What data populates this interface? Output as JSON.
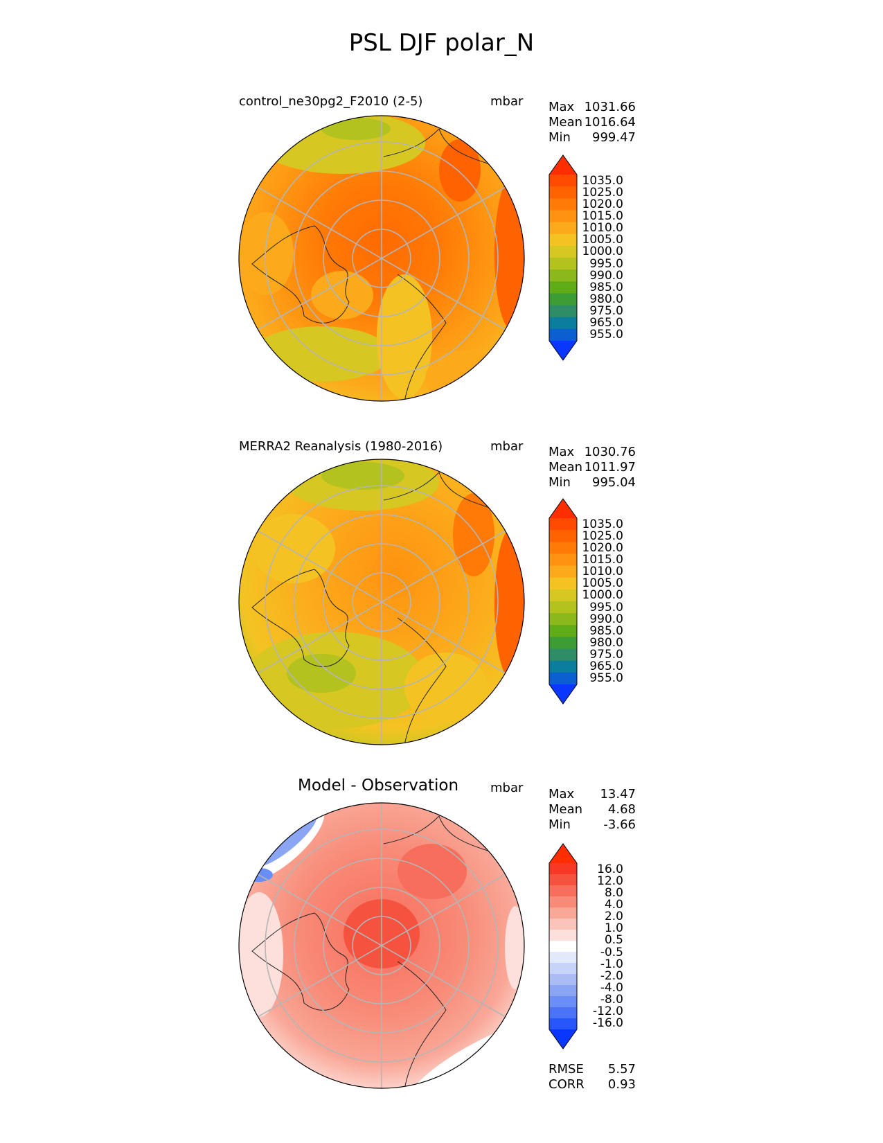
{
  "figure": {
    "title": "PSL DJF polar_N"
  },
  "colors": {
    "abs_scale": [
      "#0a37ff",
      "#0b5fd1",
      "#0b7d9d",
      "#2e8c66",
      "#3d9c34",
      "#60ab18",
      "#8bb81b",
      "#b3c21e",
      "#d6c722",
      "#f4c323",
      "#fcaa1b",
      "#ff9210",
      "#ff7a06",
      "#ff6200",
      "#ff4a00",
      "#ff2e00"
    ],
    "diff_scale": [
      "#0a37ff",
      "#2756fb",
      "#4a73f8",
      "#6a8df6",
      "#8ba5f5",
      "#aabcf6",
      "#c7d3f8",
      "#e3e9fb",
      "#ffffff",
      "#fde0db",
      "#fbc4ba",
      "#f9a797",
      "#f88b78",
      "#f76e5c",
      "#f65240",
      "#f63825",
      "#ff2e00"
    ]
  },
  "panels": [
    {
      "name": "model",
      "label": "control_ne30pg2_F2010 (2-5)",
      "units": "mbar",
      "stats": [
        {
          "label": "Max",
          "value": "1031.66"
        },
        {
          "label": "Mean",
          "value": "1016.64"
        },
        {
          "label": "Min",
          "value": "999.47"
        }
      ],
      "colorbar_ticks": [
        "1035.0",
        "1025.0",
        "1020.0",
        "1015.0",
        "1010.0",
        "1005.0",
        "1000.0",
        "995.0",
        "990.0",
        "985.0",
        "980.0",
        "975.0",
        "965.0",
        "955.0"
      ]
    },
    {
      "name": "obs",
      "label": "MERRA2 Reanalysis (1980-2016)",
      "units": "mbar",
      "stats": [
        {
          "label": "Max",
          "value": "1030.76"
        },
        {
          "label": "Mean",
          "value": "1011.97"
        },
        {
          "label": "Min",
          "value": "995.04"
        }
      ],
      "colorbar_ticks": [
        "1035.0",
        "1025.0",
        "1020.0",
        "1015.0",
        "1010.0",
        "1005.0",
        "1000.0",
        "995.0",
        "990.0",
        "985.0",
        "980.0",
        "975.0",
        "965.0",
        "955.0"
      ]
    },
    {
      "name": "diff",
      "label": "Model - Observation",
      "units": "mbar",
      "stats": [
        {
          "label": "Max",
          "value": "13.47"
        },
        {
          "label": "Mean",
          "value": "4.68"
        },
        {
          "label": "Min",
          "value": "-3.66"
        }
      ],
      "colorbar_ticks": [
        "16.0",
        "12.0",
        "8.0",
        "4.0",
        "2.0",
        "1.0",
        "0.5",
        "-0.5",
        "-1.0",
        "-2.0",
        "-4.0",
        "-8.0",
        "-12.0",
        "-16.0"
      ],
      "extra_stats": [
        {
          "label": "RMSE",
          "value": "5.57"
        },
        {
          "label": "CORR",
          "value": "0.93"
        }
      ]
    }
  ],
  "chart_data": {
    "type": "heatmap",
    "title": "PSL DJF polar_N",
    "projection": "north polar stereographic",
    "maps": [
      {
        "name": "control_ne30pg2_F2010 (2-5)",
        "units": "mbar",
        "max": 1031.66,
        "mean": 1016.64,
        "min": 999.47,
        "levels": [
          955,
          965,
          975,
          980,
          985,
          990,
          995,
          1000,
          1005,
          1010,
          1015,
          1020,
          1025,
          1035
        ]
      },
      {
        "name": "MERRA2 Reanalysis (1980-2016)",
        "units": "mbar",
        "max": 1030.76,
        "mean": 1011.97,
        "min": 995.04,
        "levels": [
          955,
          965,
          975,
          980,
          985,
          990,
          995,
          1000,
          1005,
          1010,
          1015,
          1020,
          1025,
          1035
        ]
      },
      {
        "name": "Model - Observation",
        "units": "mbar",
        "max": 13.47,
        "mean": 4.68,
        "min": -3.66,
        "rmse": 5.57,
        "corr": 0.93,
        "levels": [
          -16,
          -12,
          -8,
          -4,
          -2,
          -1,
          -0.5,
          0.5,
          1,
          2,
          4,
          8,
          12,
          16
        ]
      }
    ]
  }
}
